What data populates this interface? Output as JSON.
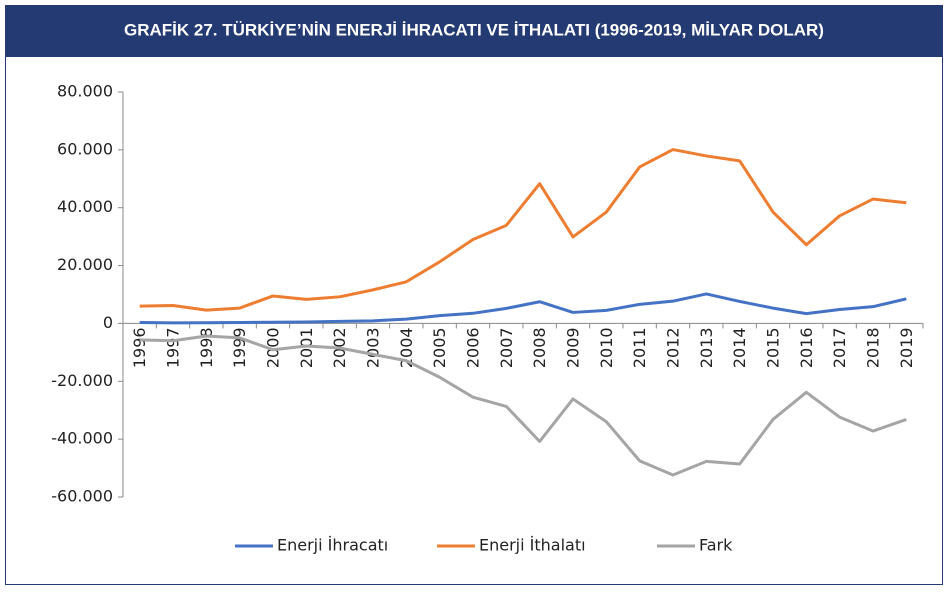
{
  "chart_data": {
    "type": "line",
    "title": "GRAFİK 27. TÜRKİYE’NİN ENERJİ İHRACATI VE İTHALATI (1996-2019, MİLYAR DOLAR)",
    "categories": [
      "1996",
      "1997",
      "1998",
      "1999",
      "2000",
      "2001",
      "2002",
      "2003",
      "2004",
      "2005",
      "2006",
      "2007",
      "2008",
      "2009",
      "2010",
      "2011",
      "2012",
      "2013",
      "2014",
      "2015",
      "2016",
      "2017",
      "2018",
      "2019"
    ],
    "series": [
      {
        "name": "Enerji İhracatı",
        "color": "#4472c4",
        "values": [
          300,
          200,
          250,
          300,
          400,
          500,
          700,
          900,
          1500,
          2700,
          3500,
          5200,
          7500,
          3800,
          4500,
          6600,
          7700,
          10200,
          7600,
          5300,
          3400,
          4800,
          5800,
          8500
        ]
      },
      {
        "name": "Enerji İthalatı",
        "color": "#ed7d31",
        "values": [
          6000,
          6200,
          4600,
          5300,
          9500,
          8300,
          9200,
          11600,
          14400,
          21300,
          29000,
          33900,
          48300,
          29900,
          38500,
          54100,
          60100,
          57900,
          56200,
          38500,
          27200,
          37200,
          43000,
          41700
        ]
      },
      {
        "name": "Fark",
        "color": "#a5a5a5",
        "values": [
          -5700,
          -6000,
          -4350,
          -5000,
          -9100,
          -7800,
          -8500,
          -10700,
          -12900,
          -18600,
          -25500,
          -28700,
          -40800,
          -26100,
          -34000,
          -47500,
          -52400,
          -47700,
          -48600,
          -33200,
          -23800,
          -32400,
          -37200,
          -33200
        ]
      }
    ],
    "ylim": [
      -60000,
      80000
    ],
    "yticks": [
      {
        "value": -60000,
        "label": "-60.000"
      },
      {
        "value": -40000,
        "label": "-40.000"
      },
      {
        "value": -20000,
        "label": "-20.000"
      },
      0,
      {
        "value": 20000,
        "label": "20.000"
      },
      {
        "value": 40000,
        "label": "40.000"
      },
      {
        "value": 60000,
        "label": "60.000"
      },
      {
        "value": 80000,
        "label": "80.000"
      }
    ],
    "grid": false,
    "legend": "bottom"
  }
}
